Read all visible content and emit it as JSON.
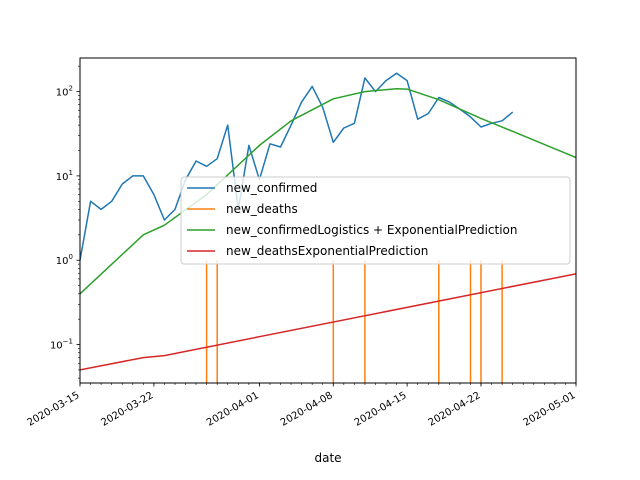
{
  "chart_data": {
    "type": "line",
    "title": "",
    "xlabel": "date",
    "ylabel": "",
    "yscale": "log",
    "ylim": [
      0.035,
      250
    ],
    "xlim": [
      "2020-03-15",
      "2020-05-01"
    ],
    "grid": false,
    "legend_position": "center",
    "x_ticks": [
      "2020-03-15",
      "2020-03-22",
      "2020-04-01",
      "2020-04-08",
      "2020-04-15",
      "2020-04-22",
      "2020-05-01"
    ],
    "y_ticks": [
      {
        "value": 0.1,
        "base": "10",
        "exp": "−1"
      },
      {
        "value": 1,
        "base": "10",
        "exp": "0"
      },
      {
        "value": 10,
        "base": "10",
        "exp": "1"
      },
      {
        "value": 100,
        "base": "10",
        "exp": "2"
      }
    ],
    "series": [
      {
        "name": "new_confirmed",
        "color": "#1f77b4",
        "x": [
          "2020-03-15",
          "2020-03-16",
          "2020-03-17",
          "2020-03-18",
          "2020-03-19",
          "2020-03-20",
          "2020-03-21",
          "2020-03-22",
          "2020-03-23",
          "2020-03-24",
          "2020-03-25",
          "2020-03-26",
          "2020-03-27",
          "2020-03-28",
          "2020-03-29",
          "2020-03-30",
          "2020-03-31",
          "2020-04-01",
          "2020-04-02",
          "2020-04-03",
          "2020-04-04",
          "2020-04-05",
          "2020-04-06",
          "2020-04-07",
          "2020-04-08",
          "2020-04-09",
          "2020-04-10",
          "2020-04-11",
          "2020-04-12",
          "2020-04-13",
          "2020-04-14",
          "2020-04-15",
          "2020-04-16",
          "2020-04-17",
          "2020-04-18",
          "2020-04-19",
          "2020-04-20",
          "2020-04-21",
          "2020-04-22",
          "2020-04-23",
          "2020-04-24",
          "2020-04-25"
        ],
        "y": [
          1,
          5,
          4,
          5,
          8,
          10,
          10,
          6,
          3,
          4,
          9,
          15,
          13,
          16,
          40,
          4,
          23,
          9,
          24,
          22,
          40,
          75,
          115,
          65,
          25,
          37,
          42,
          145,
          100,
          135,
          165,
          135,
          47,
          55,
          85,
          75,
          62,
          50,
          38,
          42,
          45,
          57
        ]
      },
      {
        "name": "new_deaths",
        "color": "#ff7f0e",
        "x": [
          "2020-03-27",
          "2020-03-28",
          "2020-04-08",
          "2020-04-11",
          "2020-04-18",
          "2020-04-21",
          "2020-04-22",
          "2020-04-24"
        ],
        "y": [
          1,
          1,
          1,
          1,
          1,
          1,
          1,
          1
        ]
      },
      {
        "name": "new_confirmedLogistics + ExponentialPrediction",
        "color": "#2ca02c",
        "x": [
          "2020-03-15",
          "2020-03-21",
          "2020-03-23",
          "2020-03-27",
          "2020-04-01",
          "2020-04-04",
          "2020-04-08",
          "2020-04-11",
          "2020-04-14",
          "2020-04-15",
          "2020-04-18",
          "2020-04-22",
          "2020-04-26",
          "2020-05-01"
        ],
        "y": [
          0.4,
          2,
          2.6,
          6,
          23,
          45,
          82,
          100,
          108,
          107,
          80,
          48,
          30,
          16.5
        ]
      },
      {
        "name": "new_deathsExponentialPrediction",
        "color": "#d62728",
        "x": [
          "2020-03-15",
          "2020-03-21",
          "2020-03-23",
          "2020-05-01"
        ],
        "y": [
          0.05,
          0.07,
          0.074,
          0.69
        ]
      }
    ]
  }
}
